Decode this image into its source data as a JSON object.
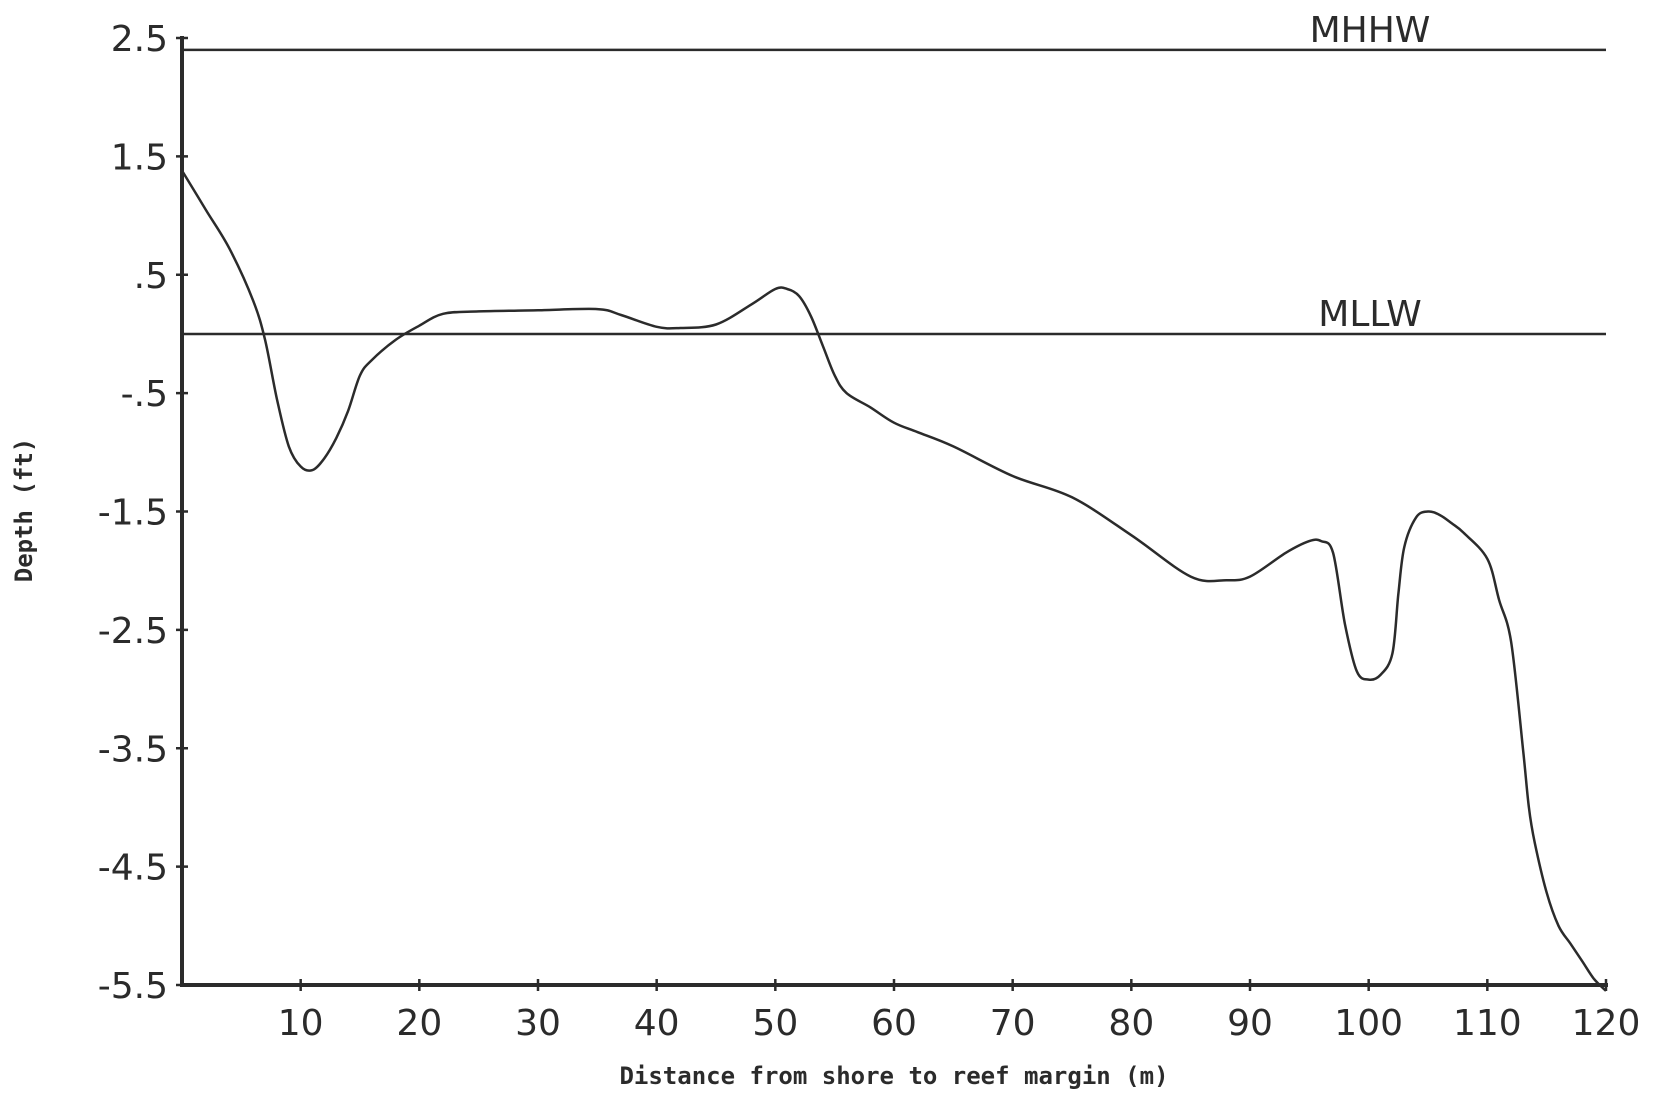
{
  "chart_data": {
    "type": "line",
    "title": "",
    "xlabel": "Distance from shore to reef margin (m)",
    "ylabel": "Depth (ft)",
    "xlim": [
      0,
      120
    ],
    "ylim": [
      -5.5,
      2.5
    ],
    "x_ticks": [
      10,
      20,
      30,
      40,
      50,
      60,
      70,
      80,
      90,
      100,
      110,
      120
    ],
    "x_tick_labels": [
      "10",
      "20",
      "30",
      "40",
      "50",
      "60",
      "70",
      "80",
      "90",
      "100",
      "110",
      "120"
    ],
    "y_ticks": [
      2.5,
      1.5,
      0.5,
      -0.5,
      -1.5,
      -2.5,
      -3.5,
      -4.5,
      -5.5
    ],
    "y_tick_labels": [
      "2.5",
      "1.5",
      ".5",
      "-.5",
      "-1.5",
      "-2.5",
      "-3.5",
      "-4.5",
      "-5.5"
    ],
    "grid": false,
    "reference_lines": [
      {
        "label": "MHHW",
        "y": 2.4
      },
      {
        "label": "MLLW",
        "y": 0.0
      }
    ],
    "series": [
      {
        "x": [
          0,
          2,
          4,
          6,
          7,
          8,
          9,
          10,
          11,
          12,
          13,
          14,
          15,
          16,
          18,
          20,
          22,
          25,
          30,
          35,
          37,
          40,
          42,
          45,
          48,
          50,
          51,
          52,
          53,
          54,
          55,
          56,
          58,
          60,
          62,
          65,
          70,
          75,
          80,
          85,
          88,
          90,
          93,
          95,
          96,
          97,
          98,
          99,
          100,
          101,
          102,
          102.5,
          103,
          104,
          105,
          106,
          107,
          108,
          110,
          111,
          112,
          113,
          113.5,
          114,
          115,
          116,
          117,
          118,
          119,
          120
        ],
        "values": [
          1.38,
          1.05,
          0.72,
          0.28,
          -0.05,
          -0.55,
          -0.95,
          -1.12,
          -1.15,
          -1.05,
          -0.88,
          -0.65,
          -0.35,
          -0.22,
          -0.05,
          0.07,
          0.17,
          0.19,
          0.2,
          0.21,
          0.16,
          0.06,
          0.05,
          0.08,
          0.25,
          0.38,
          0.38,
          0.32,
          0.15,
          -0.1,
          -0.35,
          -0.5,
          -0.62,
          -0.75,
          -0.83,
          -0.95,
          -1.2,
          -1.38,
          -1.7,
          -2.05,
          -2.08,
          -2.05,
          -1.85,
          -1.75,
          -1.75,
          -1.85,
          -2.45,
          -2.85,
          -2.92,
          -2.88,
          -2.7,
          -2.2,
          -1.8,
          -1.55,
          -1.5,
          -1.53,
          -1.6,
          -1.68,
          -1.9,
          -2.25,
          -2.6,
          -3.5,
          -4.0,
          -4.3,
          -4.72,
          -5.0,
          -5.15,
          -5.3,
          -5.45,
          -5.55
        ]
      }
    ]
  }
}
